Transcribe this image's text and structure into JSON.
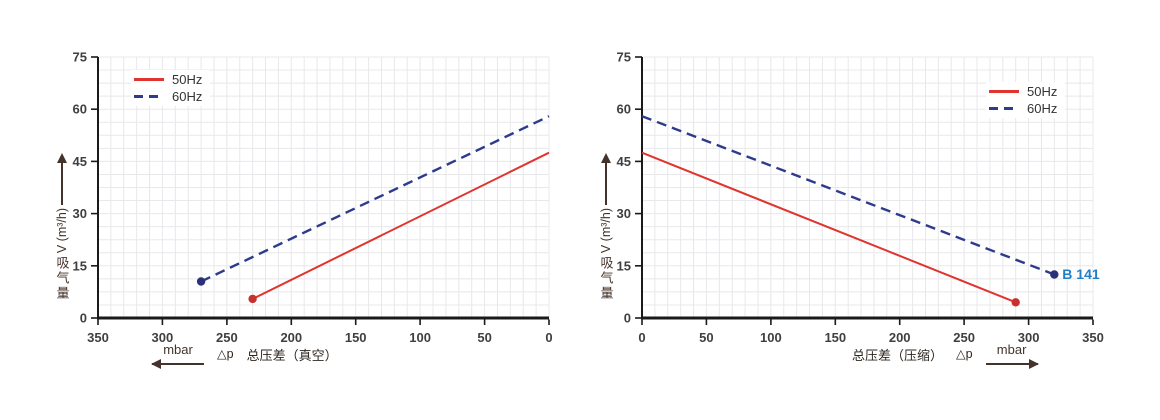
{
  "page": {
    "background": "#ffffff"
  },
  "styles": {
    "axis_color": "#1a1a1a",
    "tick_label_color": "#3f3f3f",
    "grid_color": "#e8e8ec",
    "arrow_color": "#43332b",
    "red_50hz": "#e0342e",
    "navy_60hz": "#2e3a8c",
    "annotation_blue": "#1e7fc4"
  },
  "chart_data": [
    {
      "type": "line",
      "id": "vacuum",
      "title": "",
      "y_axis": {
        "label_cjk": "吸气量",
        "label_unit": "V (m³/h)",
        "arrow": "up",
        "min": 0,
        "max": 75,
        "ticks": [
          0,
          15,
          30,
          45,
          60,
          75
        ]
      },
      "x_axis": {
        "min": 0,
        "max": 350,
        "reversed": true,
        "ticks": [
          350,
          300,
          250,
          200,
          150,
          100,
          50,
          0
        ],
        "unit": "mbar",
        "arrow_dir": "left",
        "delta_symbol": "△p",
        "caption": "总压差（真空）"
      },
      "grid": {
        "x_divisions": 35,
        "y_divisions": 20,
        "color": "#e8e8ec"
      },
      "legend_position": "top-left",
      "series": [
        {
          "name": "50Hz",
          "color": "#e0342e",
          "dash": false,
          "points": [
            [
              230,
              5.5
            ],
            [
              0,
              47.5
            ]
          ],
          "marker_index": 0,
          "marker_color": "#c8302d"
        },
        {
          "name": "60Hz",
          "color": "#2e3a8c",
          "dash": true,
          "points": [
            [
              270,
              10.5
            ],
            [
              0,
              58
            ]
          ],
          "marker_index": 0,
          "marker_color": "#2b3178"
        }
      ]
    },
    {
      "type": "line",
      "id": "compression",
      "title": "",
      "y_axis": {
        "label_cjk": "吸气量",
        "label_unit": "V (m³/h)",
        "arrow": "up",
        "min": 0,
        "max": 75,
        "ticks": [
          0,
          15,
          30,
          45,
          60,
          75
        ]
      },
      "x_axis": {
        "min": 0,
        "max": 350,
        "reversed": false,
        "ticks": [
          0,
          50,
          100,
          150,
          200,
          250,
          300,
          350
        ],
        "unit": "mbar",
        "arrow_dir": "right",
        "delta_symbol": "△p",
        "caption": "总压差（压缩）"
      },
      "grid": {
        "x_divisions": 35,
        "y_divisions": 20,
        "color": "#e8e8ec"
      },
      "legend_position": "top-right",
      "series": [
        {
          "name": "50Hz",
          "color": "#e0342e",
          "dash": false,
          "points": [
            [
              0,
              47.5
            ],
            [
              290,
              4.5
            ]
          ],
          "marker_index": 1,
          "marker_color": "#c8302d"
        },
        {
          "name": "60Hz",
          "color": "#2e3a8c",
          "dash": true,
          "points": [
            [
              0,
              58
            ],
            [
              320,
              12.5
            ]
          ],
          "marker_index": 1,
          "marker_color": "#2b3178"
        }
      ],
      "annotation": {
        "text": "B 141",
        "color": "#1e7fc4",
        "at_series": 1,
        "at_point": 1
      }
    }
  ]
}
